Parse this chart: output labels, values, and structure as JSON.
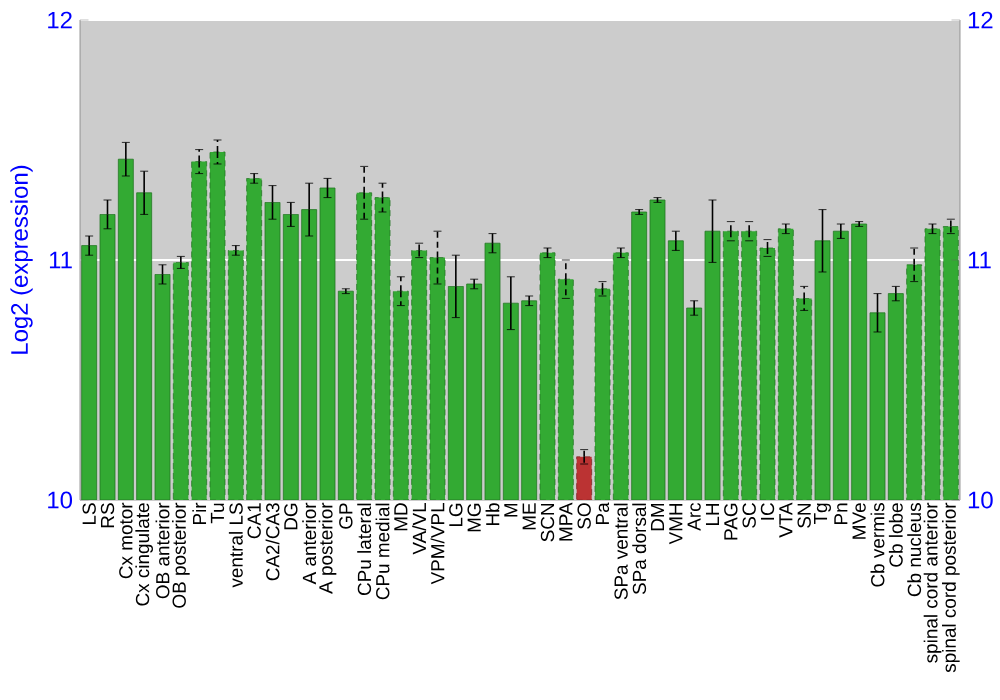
{
  "chart_data": {
    "type": "bar",
    "ylabel": "Log2 (expression)",
    "categories": [
      "LS",
      "RS",
      "Cx motor",
      "Cx cingulate",
      "OB anterior",
      "OB posterior",
      "Pir",
      "Tu",
      "ventral LS",
      "CA1",
      "CA2/CA3",
      "DG",
      "A anterior",
      "A posterior",
      "GP",
      "CPu lateral",
      "CPu medial",
      "MD",
      "VA/VL",
      "VPM/VPL",
      "LG",
      "MG",
      "Hb",
      "M",
      "ME",
      "SCN",
      "MPA",
      "SO",
      "Pa",
      "SPa ventral",
      "SPa dorsal",
      "DM",
      "VMH",
      "Arc",
      "LH",
      "PAG",
      "SC",
      "IC",
      "VTA",
      "SN",
      "Tg",
      "Pn",
      "MVe",
      "Cb vermis",
      "Cb lobe",
      "Cb nucleus",
      "spinal cord anterior",
      "spinal cord posterior"
    ],
    "values": [
      11.06,
      11.19,
      11.42,
      11.28,
      10.94,
      10.99,
      11.41,
      11.45,
      11.04,
      11.34,
      11.24,
      11.19,
      11.21,
      11.3,
      10.87,
      11.28,
      11.26,
      10.87,
      11.04,
      11.01,
      10.89,
      10.9,
      11.07,
      10.82,
      10.83,
      11.03,
      10.92,
      10.18,
      10.88,
      11.03,
      11.2,
      11.25,
      11.08,
      10.8,
      11.12,
      11.12,
      11.12,
      11.05,
      11.13,
      10.84,
      11.08,
      11.12,
      11.15,
      10.78,
      10.86,
      10.98,
      11.13,
      11.14
    ],
    "errors": [
      0.04,
      0.06,
      0.07,
      0.09,
      0.04,
      0.025,
      0.05,
      0.05,
      0.02,
      0.02,
      0.07,
      0.05,
      0.11,
      0.04,
      0.01,
      0.11,
      0.06,
      0.06,
      0.03,
      0.11,
      0.13,
      0.02,
      0.04,
      0.11,
      0.02,
      0.02,
      0.08,
      0.03,
      0.03,
      0.02,
      0.01,
      0.01,
      0.04,
      0.03,
      0.13,
      0.04,
      0.04,
      0.035,
      0.02,
      0.05,
      0.13,
      0.03,
      0.01,
      0.08,
      0.03,
      0.07,
      0.02,
      0.03
    ],
    "colors": [
      "#33aa33",
      "#33aa33",
      "#33aa33",
      "#33aa33",
      "#33aa33",
      "#33aa33",
      "#33aa33",
      "#33aa33",
      "#33aa33",
      "#33aa33",
      "#33aa33",
      "#33aa33",
      "#33aa33",
      "#33aa33",
      "#33aa33",
      "#33aa33",
      "#33aa33",
      "#33aa33",
      "#33aa33",
      "#33aa33",
      "#33aa33",
      "#33aa33",
      "#33aa33",
      "#33aa33",
      "#33aa33",
      "#33aa33",
      "#33aa33",
      "#bb3333",
      "#33aa33",
      "#33aa33",
      "#33aa33",
      "#33aa33",
      "#33aa33",
      "#33aa33",
      "#33aa33",
      "#33aa33",
      "#33aa33",
      "#33aa33",
      "#33aa33",
      "#33aa33",
      "#33aa33",
      "#33aa33",
      "#33aa33",
      "#33aa33",
      "#33aa33",
      "#33aa33",
      "#33aa33",
      "#33aa33"
    ],
    "ylim": [
      10,
      12
    ],
    "yticks": [
      10,
      11,
      12
    ],
    "y2lim": [
      10,
      12
    ],
    "y2ticks": [
      10,
      11,
      12
    ],
    "grid": "y"
  }
}
